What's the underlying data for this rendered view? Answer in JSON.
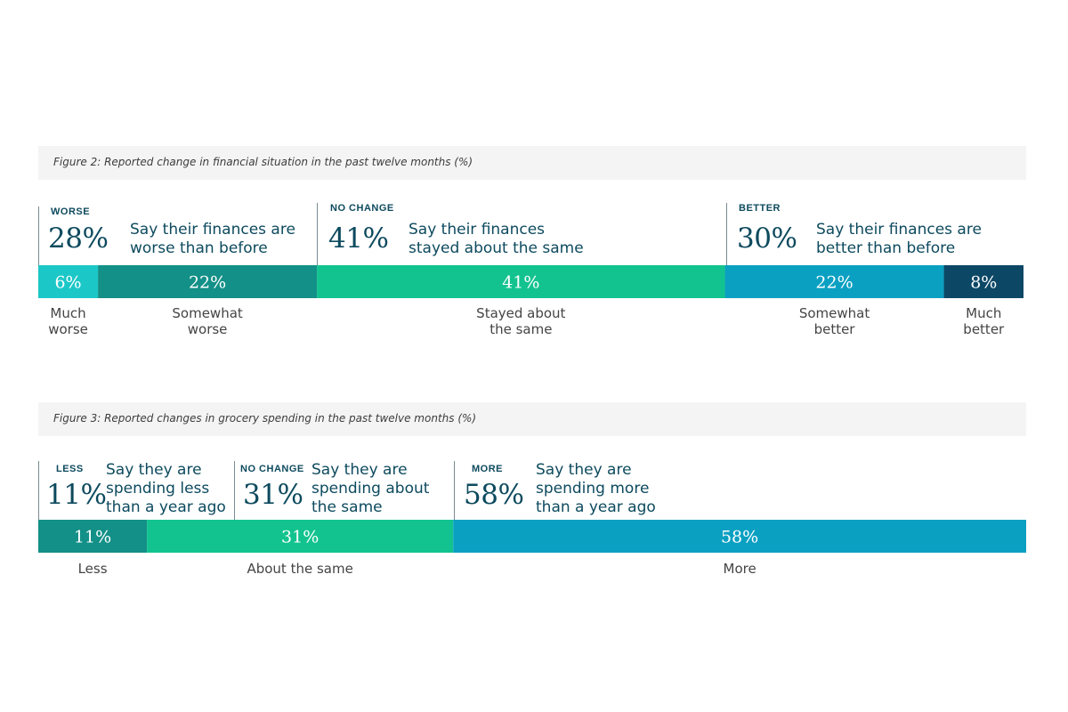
{
  "chart_data": [
    {
      "type": "bar",
      "title": "Figure 2: Reported change in financial situation in the past twelve months (%)",
      "stacked": true,
      "orientation": "horizontal",
      "groups": [
        {
          "label": "WORSE",
          "total": "28%",
          "description": "Say their finances are\nworse than before"
        },
        {
          "label": "NO CHANGE",
          "total": "41%",
          "description": "Say their finances\nstayed about the same"
        },
        {
          "label": "BETTER",
          "total": "30%",
          "description": "Say their finances are\nbetter than before"
        }
      ],
      "categories": [
        "Much\nworse",
        "Somewhat\nworse",
        "Stayed about\nthe same",
        "Somewhat\nbetter",
        "Much\nbetter"
      ],
      "values": [
        6,
        22,
        41,
        22,
        8
      ],
      "value_labels": [
        "6%",
        "22%",
        "41%",
        "22%",
        "8%"
      ],
      "colors": [
        "#1cc7c7",
        "#139087",
        "#12c38f",
        "#0aa0c2",
        "#0d4766"
      ]
    },
    {
      "type": "bar",
      "title": "Figure 3: Reported changes in grocery spending in the past twelve months (%)",
      "stacked": true,
      "orientation": "horizontal",
      "groups": [
        {
          "label": "LESS",
          "total": "11%",
          "description": "Say they are\nspending less\nthan a year ago"
        },
        {
          "label": "NO CHANGE",
          "total": "31%",
          "description": "Say they are\nspending about\nthe same"
        },
        {
          "label": "MORE",
          "total": "58%",
          "description": "Say they are\nspending more\nthan a year ago"
        }
      ],
      "categories": [
        "Less",
        "About the same",
        "More"
      ],
      "values": [
        11,
        31,
        58
      ],
      "value_labels": [
        "11%",
        "31%",
        "58%"
      ],
      "colors": [
        "#139087",
        "#12c38f",
        "#0aa0c2"
      ]
    }
  ]
}
